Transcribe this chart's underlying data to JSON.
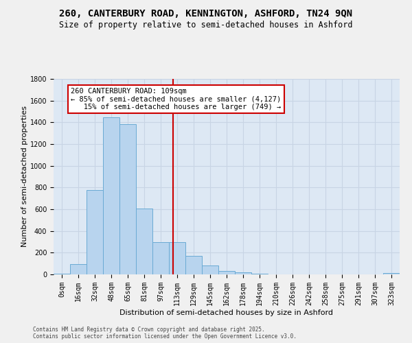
{
  "title_line1": "260, CANTERBURY ROAD, KENNINGTON, ASHFORD, TN24 9QN",
  "title_line2": "Size of property relative to semi-detached houses in Ashford",
  "xlabel": "Distribution of semi-detached houses by size in Ashford",
  "ylabel": "Number of semi-detached properties",
  "categories": [
    "0sqm",
    "16sqm",
    "32sqm",
    "48sqm",
    "65sqm",
    "81sqm",
    "97sqm",
    "113sqm",
    "129sqm",
    "145sqm",
    "162sqm",
    "178sqm",
    "194sqm",
    "210sqm",
    "226sqm",
    "242sqm",
    "258sqm",
    "275sqm",
    "291sqm",
    "307sqm",
    "323sqm"
  ],
  "values": [
    5,
    95,
    775,
    1445,
    1385,
    605,
    300,
    295,
    170,
    80,
    30,
    20,
    5,
    0,
    0,
    0,
    0,
    0,
    0,
    0,
    10
  ],
  "bar_color": "#b8d4ee",
  "bar_edge_color": "#6aaad4",
  "vline_color": "#cc0000",
  "grid_color": "#c8d4e4",
  "bg_color": "#dde8f4",
  "fig_color": "#f0f0f0",
  "ylim": [
    0,
    1800
  ],
  "yticks": [
    0,
    200,
    400,
    600,
    800,
    1000,
    1200,
    1400,
    1600,
    1800
  ],
  "annotation_title": "260 CANTERBURY ROAD: 109sqm",
  "annotation_line1": "← 85% of semi-detached houses are smaller (4,127)",
  "annotation_line2": "15% of semi-detached houses are larger (749) →",
  "footnote": "Contains HM Land Registry data © Crown copyright and database right 2025.\nContains public sector information licensed under the Open Government Licence v3.0."
}
